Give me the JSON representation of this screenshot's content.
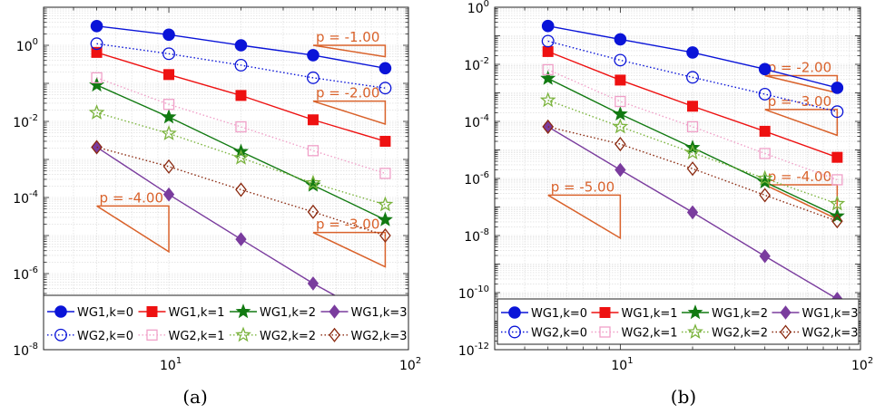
{
  "colors": {
    "WG1,k=0": "#0a14d8",
    "WG1,k=1": "#ee1111",
    "WG1,k=2": "#127a12",
    "WG1,k=3": "#7a3c9e",
    "WG2,k=0": "#0a14d8",
    "WG2,k=1": "#f0a0c8",
    "WG2,k=2": "#7ab33c",
    "WG2,k=3": "#8b2a10",
    "slope": "#d9622b",
    "grid": "#d8d8d8"
  },
  "chart_data": [
    {
      "type": "line",
      "caption": "(a)",
      "xscale": "log",
      "yscale": "log",
      "xlim": [
        3,
        100
      ],
      "ylim": [
        1e-08,
        10
      ],
      "grid": true,
      "legend_position": "bottom",
      "x_ticks": [
        {
          "base": "10",
          "exp": "1"
        },
        {
          "base": "10",
          "exp": "2"
        }
      ],
      "y_ticks": [
        {
          "base": "10",
          "exp": "-8"
        },
        {
          "base": "10",
          "exp": "-6"
        },
        {
          "base": "10",
          "exp": "-4"
        },
        {
          "base": "10",
          "exp": "-2"
        },
        {
          "base": "10",
          "exp": "0"
        }
      ],
      "x": [
        5,
        10,
        20,
        40,
        80
      ],
      "series": [
        {
          "name": "WG1,k=0",
          "values": [
            3.2,
            1.9,
            1.0,
            0.55,
            0.25
          ],
          "marker": "circle",
          "line": "solid"
        },
        {
          "name": "WG1,k=1",
          "values": [
            0.65,
            0.17,
            0.048,
            0.011,
            0.003
          ],
          "marker": "square",
          "line": "solid"
        },
        {
          "name": "WG1,k=2",
          "values": [
            0.09,
            0.013,
            0.0016,
            0.00021,
            2.6e-05
          ],
          "marker": "star",
          "line": "solid"
        },
        {
          "name": "WG1,k=3",
          "values": [
            0.0021,
            0.00012,
            8e-06,
            5.5e-07,
            5e-08
          ],
          "marker": "diamond",
          "line": "solid"
        },
        {
          "name": "WG2,k=0",
          "values": [
            1.1,
            0.6,
            0.3,
            0.14,
            0.075
          ],
          "marker": "circle-open",
          "line": "dotted"
        },
        {
          "name": "WG2,k=1",
          "values": [
            0.14,
            0.028,
            0.0072,
            0.0017,
            0.00043
          ],
          "marker": "square-open",
          "line": "dotted"
        },
        {
          "name": "WG2,k=2",
          "values": [
            0.017,
            0.0048,
            0.0011,
            0.00024,
            6.5e-05
          ],
          "marker": "star-open",
          "line": "dotted"
        },
        {
          "name": "WG2,k=3",
          "values": [
            0.0021,
            0.00065,
            0.00016,
            4.2e-05,
            1e-05
          ],
          "marker": "diamond-open",
          "line": "dotted"
        }
      ],
      "slope_annotations": [
        {
          "label": "p = -1.00",
          "x_from": 40,
          "x_to": 80,
          "y_start": 1.0,
          "slope": -1.0
        },
        {
          "label": "p = -2.00",
          "x_from": 40,
          "x_to": 80,
          "y_start": 0.034,
          "slope": -2.0
        },
        {
          "label": "p = -3.00",
          "x_from": 40,
          "x_to": 80,
          "y_start": 1.2e-05,
          "slope": -3.0
        },
        {
          "label": "p = -4.00",
          "x_from": 5,
          "x_to": 10,
          "y_start": 6e-05,
          "slope": -4.0
        }
      ],
      "legend": {
        "row1": [
          "WG1,k=0",
          "WG1,k=1",
          "WG1,k=2",
          "WG1,k=3"
        ],
        "row2": [
          "WG2,k=0",
          "WG2,k=1",
          "WG2,k=2",
          "WG2,k=3"
        ]
      }
    },
    {
      "type": "line",
      "caption": "(b)",
      "xscale": "log",
      "yscale": "log",
      "xlim": [
        3,
        100
      ],
      "ylim": [
        1e-12,
        1
      ],
      "grid": true,
      "legend_position": "bottom",
      "x_ticks": [
        {
          "base": "10",
          "exp": "1"
        },
        {
          "base": "10",
          "exp": "2"
        }
      ],
      "y_ticks": [
        {
          "base": "10",
          "exp": "-12"
        },
        {
          "base": "10",
          "exp": "-10"
        },
        {
          "base": "10",
          "exp": "-8"
        },
        {
          "base": "10",
          "exp": "-6"
        },
        {
          "base": "10",
          "exp": "-4"
        },
        {
          "base": "10",
          "exp": "-2"
        },
        {
          "base": "10",
          "exp": "0"
        }
      ],
      "x": [
        5,
        10,
        20,
        40,
        80
      ],
      "series": [
        {
          "name": "WG1,k=0",
          "values": [
            0.22,
            0.075,
            0.026,
            0.0068,
            0.0015
          ],
          "marker": "circle",
          "line": "solid"
        },
        {
          "name": "WG1,k=1",
          "values": [
            0.028,
            0.0028,
            0.00034,
            4.5e-05,
            5.5e-06
          ],
          "marker": "square",
          "line": "solid"
        },
        {
          "name": "WG1,k=2",
          "values": [
            0.0032,
            0.00018,
            1.2e-05,
            7.5e-07,
            4.8e-08
          ],
          "marker": "star",
          "line": "solid"
        },
        {
          "name": "WG1,k=3",
          "values": [
            6.5e-05,
            2e-06,
            6.5e-08,
            1.9e-09,
            6e-11
          ],
          "marker": "diamond",
          "line": "solid"
        },
        {
          "name": "WG2,k=0",
          "values": [
            0.065,
            0.014,
            0.0035,
            0.0009,
            0.00022
          ],
          "marker": "circle-open",
          "line": "dotted"
        },
        {
          "name": "WG2,k=1",
          "values": [
            0.0065,
            0.0005,
            6.5e-05,
            7.5e-06,
            9e-07
          ],
          "marker": "square-open",
          "line": "dotted"
        },
        {
          "name": "WG2,k=2",
          "values": [
            0.00055,
            6.5e-05,
            8e-06,
            1e-06,
            1.3e-07
          ],
          "marker": "star-open",
          "line": "dotted"
        },
        {
          "name": "WG2,k=3",
          "values": [
            6.5e-05,
            1.6e-05,
            2.2e-06,
            2.6e-07,
            3.2e-08
          ],
          "marker": "diamond-open",
          "line": "dotted"
        }
      ],
      "slope_annotations": [
        {
          "label": "p = -2.00",
          "x_from": 40,
          "x_to": 80,
          "y_start": 0.004,
          "slope": -2.0
        },
        {
          "label": "p = -3.00",
          "x_from": 40,
          "x_to": 80,
          "y_start": 0.00026,
          "slope": -3.0
        },
        {
          "label": "p = -4.00",
          "x_from": 40,
          "x_to": 80,
          "y_start": 6e-07,
          "slope": -4.0
        },
        {
          "label": "p = -5.00",
          "x_from": 5,
          "x_to": 10,
          "y_start": 2.6e-07,
          "slope": -5.0
        }
      ],
      "legend": {
        "row1": [
          "WG1,k=0",
          "WG1,k=1",
          "WG1,k=2",
          "WG1,k=3"
        ],
        "row2": [
          "WG2,k=0",
          "WG2,k=1",
          "WG2,k=2",
          "WG2,k=3"
        ]
      }
    }
  ]
}
